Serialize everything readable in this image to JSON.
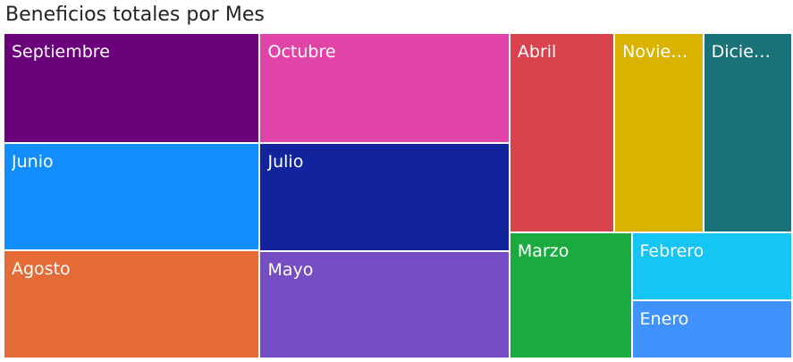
{
  "chart_data": {
    "type": "treemap",
    "title": "Beneficios totales por Mes",
    "categories": [
      "Septiembre",
      "Junio",
      "Agosto",
      "Octubre",
      "Julio",
      "Mayo",
      "Abril",
      "Noviembre",
      "Diciembre",
      "Marzo",
      "Febrero",
      "Enero"
    ],
    "values": [
      4.24,
      4.17,
      4.17,
      4.14,
      4.1,
      4.03,
      3.15,
      2.67,
      2.67,
      2.33,
      1.66,
      1.4
    ],
    "colors": [
      "#6B007B",
      "#118DFF",
      "#E66C37",
      "#E044A7",
      "#12239E",
      "#744EC2",
      "#D9434E",
      "#D9B300",
      "#197278",
      "#1AAB40",
      "#15C6F4",
      "#4092FF"
    ],
    "labels": [
      "Septiembre",
      "Junio",
      "Agosto",
      "Octubre",
      "Julio",
      "Mayo",
      "Abril",
      "Noviem...",
      "Diciem...",
      "Marzo",
      "Febrero",
      "Enero"
    ],
    "legend": "none",
    "data_labels": "category"
  }
}
